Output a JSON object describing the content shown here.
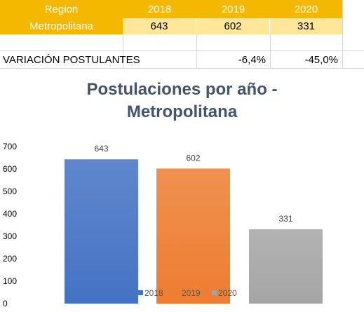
{
  "table": {
    "header": {
      "region_label": "Region",
      "years": [
        "2018",
        "2019",
        "2020"
      ]
    },
    "row": {
      "region": "Metropolitana",
      "values": [
        "643",
        "602",
        "331"
      ]
    },
    "variation": {
      "label": "VARIACIÓN POSTULANTES",
      "values": [
        "-6,4%",
        "-45,0%"
      ]
    }
  },
  "colors": {
    "header_bg": "#f5b800",
    "value_bg": "#ffe699",
    "title": "#44546a",
    "bar_2018": "#4472c4",
    "bar_2019": "#ed7d31",
    "bar_2020": "#a5a5a5"
  },
  "chart_data": {
    "type": "bar",
    "title_line1": "Postulaciones por año -",
    "title_line2": "Metropolitana",
    "categories": [
      "2018",
      "2019",
      "2020"
    ],
    "values": [
      643,
      602,
      331
    ],
    "data_labels": [
      "643",
      "602",
      "331"
    ],
    "ylim": [
      0,
      700
    ],
    "yticks": [
      "0",
      "100",
      "200",
      "300",
      "400",
      "500",
      "600",
      "700"
    ],
    "legend": [
      "2018",
      "2019",
      "2020"
    ],
    "legend_position": "bottom",
    "grid": false
  }
}
